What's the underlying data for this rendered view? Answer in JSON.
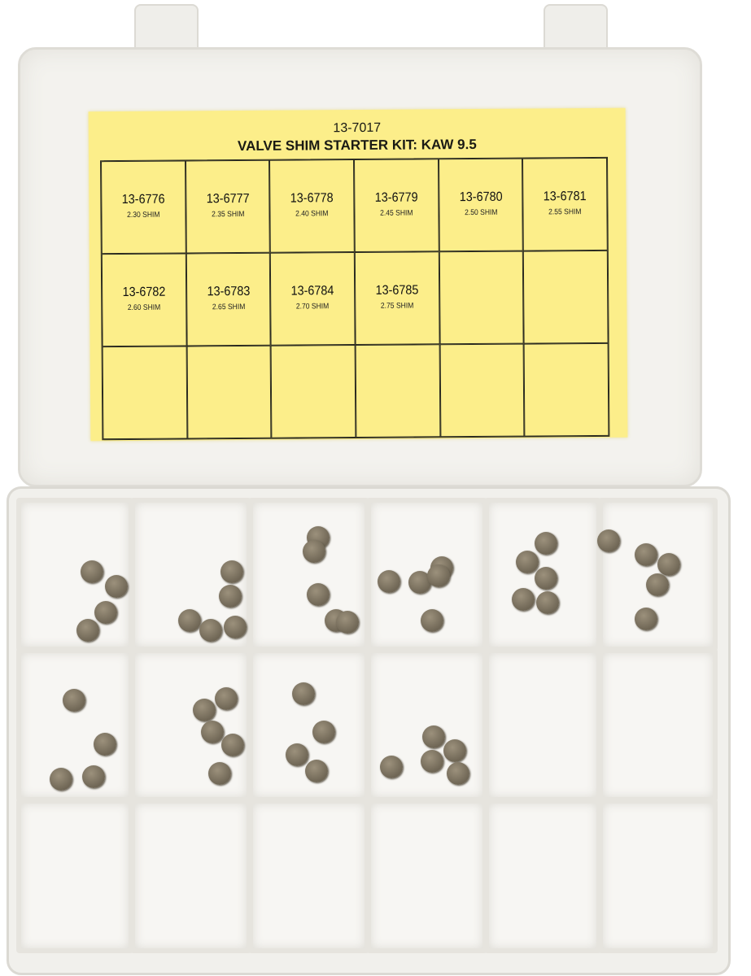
{
  "label": {
    "kit_number": "13-7017",
    "kit_title": "VALVE SHIM STARTER KIT: KAW 9.5",
    "background_color": "#fcee8a",
    "cells": [
      {
        "part": "13-6776",
        "size": "2.30 SHIM"
      },
      {
        "part": "13-6777",
        "size": "2.35 SHIM"
      },
      {
        "part": "13-6778",
        "size": "2.40 SHIM"
      },
      {
        "part": "13-6779",
        "size": "2.45 SHIM"
      },
      {
        "part": "13-6780",
        "size": "2.50 SHIM"
      },
      {
        "part": "13-6781",
        "size": "2.55 SHIM"
      },
      {
        "part": "13-6782",
        "size": "2.60 SHIM"
      },
      {
        "part": "13-6783",
        "size": "2.65 SHIM"
      },
      {
        "part": "13-6784",
        "size": "2.70 SHIM"
      },
      {
        "part": "13-6785",
        "size": "2.75 SHIM"
      },
      {
        "part": "",
        "size": ""
      },
      {
        "part": "",
        "size": ""
      },
      {
        "part": "",
        "size": ""
      },
      {
        "part": "",
        "size": ""
      },
      {
        "part": "",
        "size": ""
      },
      {
        "part": "",
        "size": ""
      },
      {
        "part": "",
        "size": ""
      },
      {
        "part": "",
        "size": ""
      }
    ]
  },
  "tray": {
    "compartment_columns": 6,
    "compartment_rows": 3
  }
}
